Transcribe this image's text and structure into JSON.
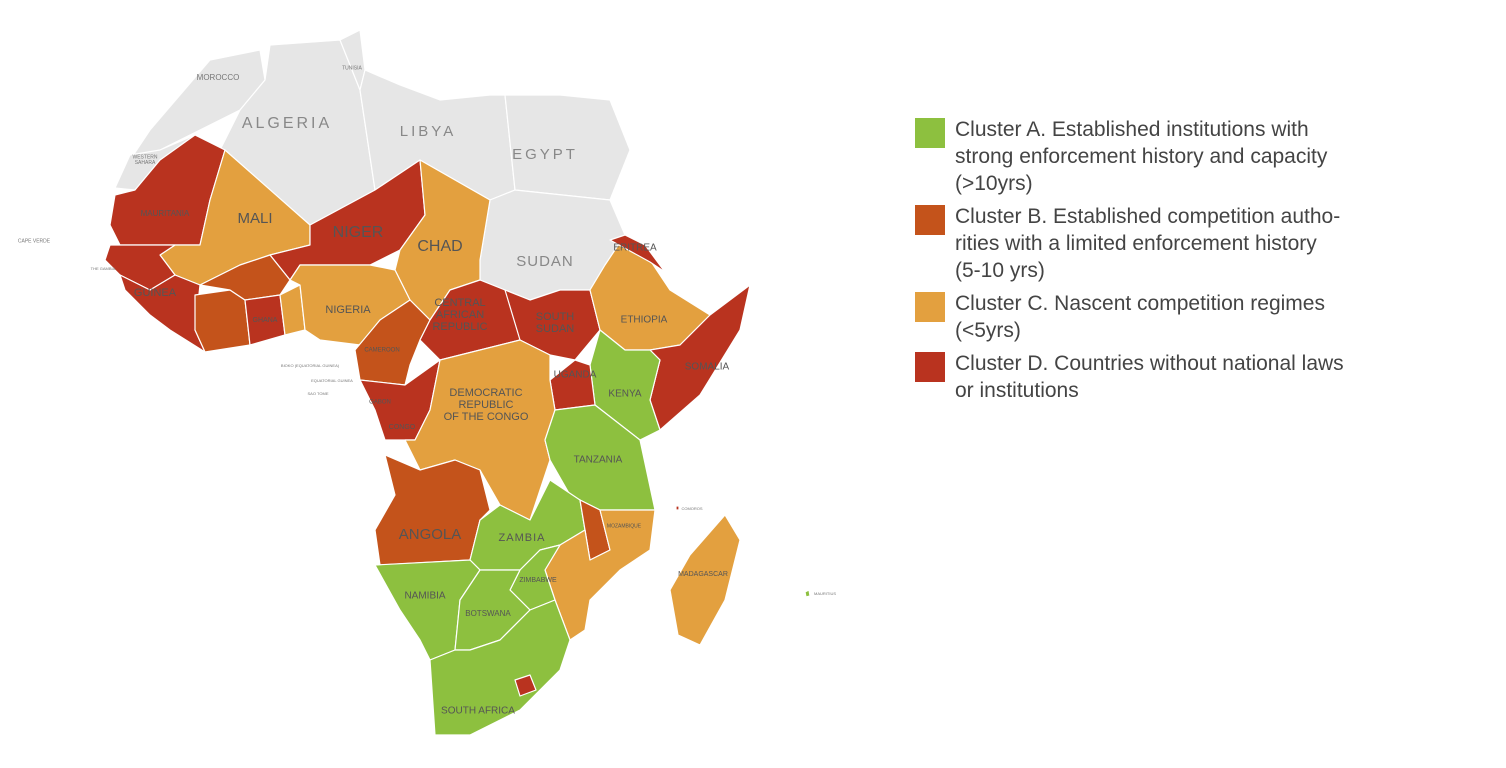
{
  "map": {
    "labels": [
      {
        "lines": [
          "MOROCCO"
        ]
      },
      {
        "lines": [
          "TUNISIA"
        ]
      },
      {
        "lines": [
          "ALGERIA"
        ]
      },
      {
        "lines": [
          "LIBYA"
        ]
      },
      {
        "lines": [
          "EGYPT"
        ]
      },
      {
        "lines": [
          "SUDAN"
        ]
      },
      {
        "lines": [
          "WESTERN",
          "SAHARA"
        ]
      },
      {
        "lines": [
          "MAURITANIA"
        ]
      },
      {
        "lines": [
          "MALI"
        ]
      },
      {
        "lines": [
          "NIGER"
        ]
      },
      {
        "lines": [
          "CHAD"
        ]
      },
      {
        "lines": [
          "NIGERIA"
        ]
      },
      {
        "lines": [
          "GUINEA"
        ]
      },
      {
        "lines": [
          "GHANA"
        ]
      },
      {
        "lines": [
          "CENTRAL",
          "AFRICAN",
          "REPUBLIC"
        ]
      },
      {
        "lines": [
          "SOUTH",
          "SUDAN"
        ]
      },
      {
        "lines": [
          "ERITREA"
        ]
      },
      {
        "lines": [
          "ETHIOPIA"
        ]
      },
      {
        "lines": [
          "SOMALIA"
        ]
      },
      {
        "lines": [
          "KENYA"
        ]
      },
      {
        "lines": [
          "UGANDA"
        ]
      },
      {
        "lines": [
          "DEMOCRATIC",
          "REPUBLIC",
          "OF THE CONGO"
        ]
      },
      {
        "lines": [
          "TANZANIA"
        ]
      },
      {
        "lines": [
          "ANGOLA"
        ]
      },
      {
        "lines": [
          "ZAMBIA"
        ]
      },
      {
        "lines": [
          "ZIMBABWE"
        ]
      },
      {
        "lines": [
          "NAMIBIA"
        ]
      },
      {
        "lines": [
          "BOTSWANA"
        ]
      },
      {
        "lines": [
          "SOUTH AFRICA"
        ]
      },
      {
        "lines": [
          "MADAGASCAR"
        ]
      },
      {
        "lines": [
          "MOZAMBIQUE"
        ]
      },
      {
        "lines": [
          "CAPE VERDE"
        ]
      },
      {
        "lines": [
          "MAURITIUS"
        ]
      },
      {
        "lines": [
          "COMOROS"
        ]
      },
      {
        "lines": [
          "CAMEROON"
        ]
      },
      {
        "lines": [
          "GABON"
        ]
      },
      {
        "lines": [
          "CONGO"
        ]
      },
      {
        "lines": [
          "THE GAMBIA"
        ]
      },
      {
        "lines": [
          "SAO TOME"
        ]
      },
      {
        "lines": [
          "BIOKO (EQUATORIAL GUINEA)"
        ]
      },
      {
        "lines": [
          "EQUATORIAL GUINEA"
        ]
      }
    ]
  },
  "legend": {
    "items": [
      {
        "color": "#8dc03f",
        "lines": [
          "Cluster A. Established institutions with",
          "strong enforcement history and capacity",
          "(>10yrs)"
        ]
      },
      {
        "color": "#c4531b",
        "lines": [
          "Cluster B. Established competition autho-",
          "rities with a limited enforcement history",
          "(5-10 yrs)"
        ]
      },
      {
        "color": "#e3a03f",
        "lines": [
          "Cluster C. Nascent competition regimes",
          "(<5yrs)"
        ]
      },
      {
        "color": "#b9331f",
        "lines": [
          "Cluster D. Countries without national laws",
          "or institutions"
        ]
      }
    ]
  }
}
